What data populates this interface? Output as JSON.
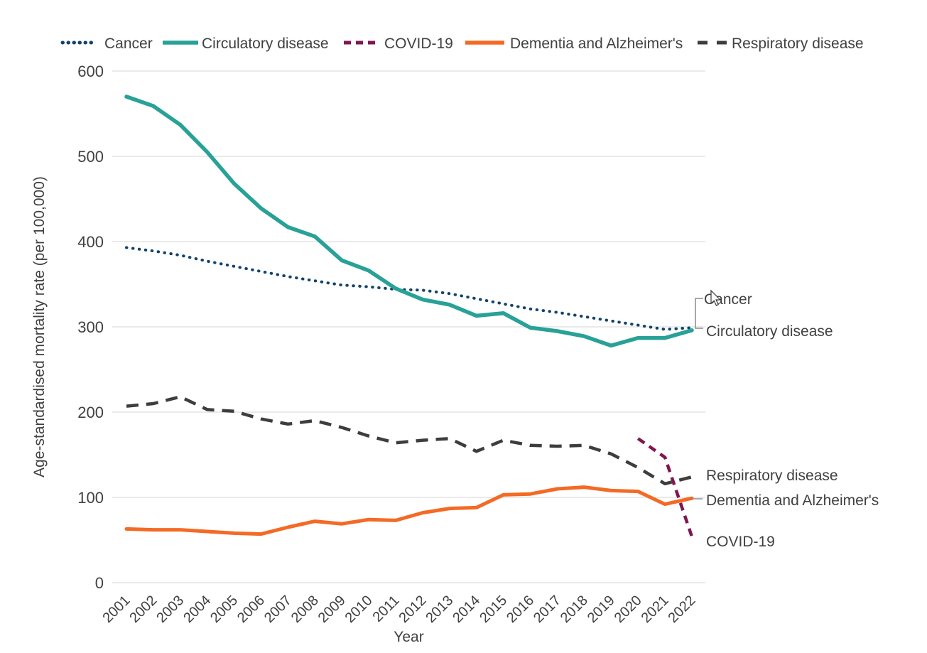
{
  "figure": {
    "x_axis_title": "Year",
    "y_axis_title": "Age-standardised mortality rate (per 100,000)"
  },
  "colors": {
    "text": "#414042",
    "grid": "#e3e3e3",
    "leader": "#8c8c8c",
    "cancer": "#12436D",
    "circulatory": "#28A197",
    "covid": "#801650",
    "dementia": "#F46A25",
    "respiratory": "#3D3D3D"
  },
  "chart_data": {
    "type": "line",
    "x": [
      2001,
      2002,
      2003,
      2004,
      2005,
      2006,
      2007,
      2008,
      2009,
      2010,
      2011,
      2012,
      2013,
      2014,
      2015,
      2016,
      2017,
      2018,
      2019,
      2020,
      2021,
      2022
    ],
    "xlabel": "Year",
    "ylabel": "Age-standardised mortality rate (per 100,000)",
    "ylim": [
      0,
      600
    ],
    "yticks": [
      0,
      100,
      200,
      300,
      400,
      500,
      600
    ],
    "grid": "horizontal",
    "legend_position": "top",
    "series": [
      {
        "name": "Cancer",
        "color": "#12436D",
        "style": "dotted",
        "values": [
          393,
          389,
          384,
          377,
          371,
          365,
          359,
          354,
          349,
          347,
          344,
          343,
          339,
          333,
          327,
          321,
          317,
          312,
          307,
          302,
          297,
          299
        ]
      },
      {
        "name": "Circulatory disease",
        "color": "#28A197",
        "style": "solid",
        "values": [
          570,
          559,
          537,
          505,
          468,
          439,
          417,
          406,
          378,
          366,
          345,
          332,
          326,
          313,
          316,
          299,
          295,
          289,
          278,
          287,
          287,
          296
        ]
      },
      {
        "name": "COVID-19",
        "color": "#801650",
        "style": "dashed",
        "values": [
          null,
          null,
          null,
          null,
          null,
          null,
          null,
          null,
          null,
          null,
          null,
          null,
          null,
          null,
          null,
          null,
          null,
          null,
          null,
          169,
          147,
          54
        ]
      },
      {
        "name": "Dementia and Alzheimer's",
        "color": "#F46A25",
        "style": "solid",
        "values": [
          63,
          62,
          62,
          60,
          58,
          57,
          65,
          72,
          69,
          74,
          73,
          82,
          87,
          88,
          103,
          104,
          110,
          112,
          108,
          107,
          92,
          99
        ]
      },
      {
        "name": "Respiratory disease",
        "color": "#3D3D3D",
        "style": "dashed",
        "values": [
          207,
          210,
          218,
          203,
          201,
          192,
          186,
          190,
          182,
          172,
          164,
          167,
          169,
          154,
          167,
          161,
          160,
          161,
          151,
          135,
          116,
          124
        ]
      }
    ],
    "end_labels": [
      {
        "label": "Cancer",
        "series": "Cancer"
      },
      {
        "label": "Circulatory disease",
        "series": "Circulatory disease"
      },
      {
        "label": "Respiratory disease",
        "series": "Respiratory disease"
      },
      {
        "label": "Dementia and Alzheimer's",
        "series": "Dementia and Alzheimer's"
      },
      {
        "label": "COVID-19",
        "series": "COVID-19"
      }
    ]
  }
}
